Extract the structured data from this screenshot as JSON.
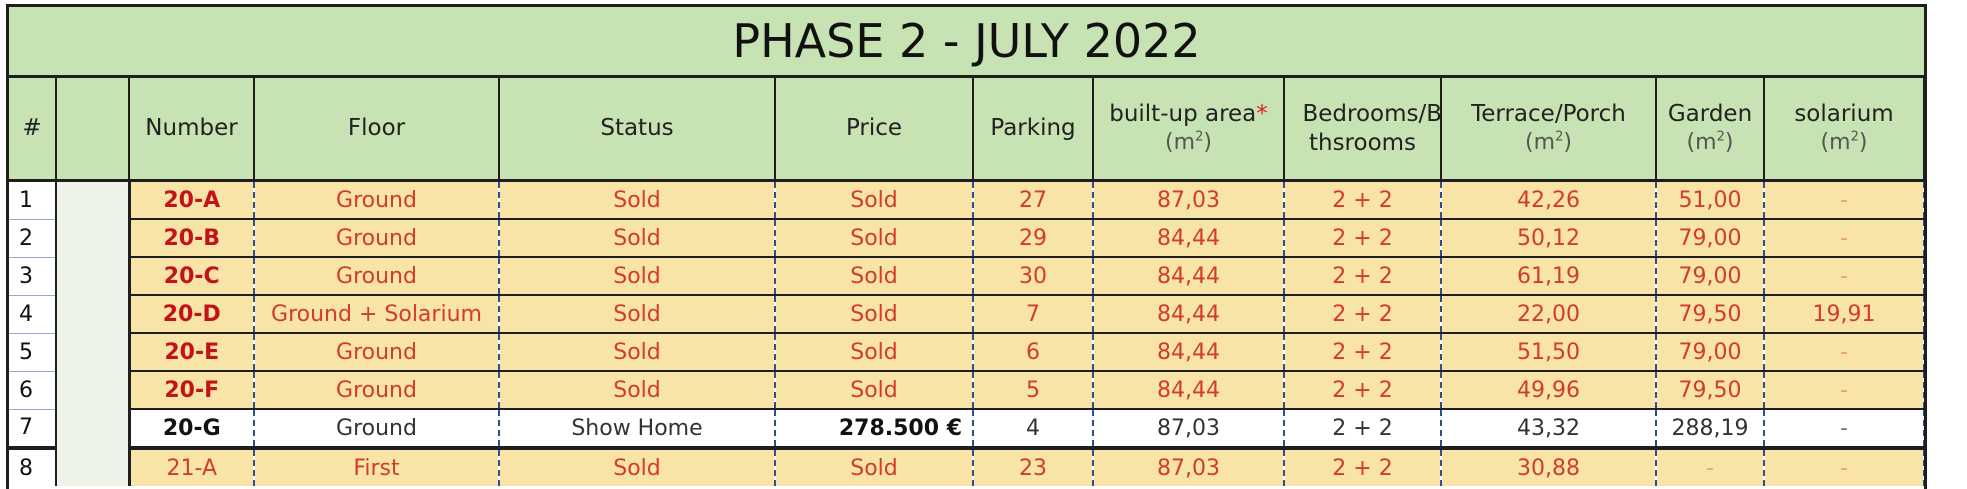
{
  "title": "PHASE 2 - JULY 2022",
  "columns": {
    "hash": "#",
    "number": "Number",
    "floor": "Floor",
    "status": "Status",
    "price": "Price",
    "parking": "Parking",
    "area": "built-up area",
    "area_star": "*",
    "bedrooms": "Bedrooms/Ba thsrooms",
    "terrace": "Terrace/Porch",
    "garden": "Garden",
    "solarium": "solarium",
    "unit_m": "(m",
    "unit_sup": "2",
    "unit_close": ")"
  },
  "rows": [
    {
      "idx": "1",
      "number": "20-A",
      "floor": "Ground",
      "status": "Sold",
      "price": "Sold",
      "parking": "27",
      "area": "87,03",
      "bedrooms": "2 + 2",
      "terrace": "42,26",
      "garden": "51,00",
      "solarium": "-"
    },
    {
      "idx": "2",
      "number": "20-B",
      "floor": "Ground",
      "status": "Sold",
      "price": "Sold",
      "parking": "29",
      "area": "84,44",
      "bedrooms": "2 + 2",
      "terrace": "50,12",
      "garden": "79,00",
      "solarium": "-"
    },
    {
      "idx": "3",
      "number": "20-C",
      "floor": "Ground",
      "status": "Sold",
      "price": "Sold",
      "parking": "30",
      "area": "84,44",
      "bedrooms": "2 + 2",
      "terrace": "61,19",
      "garden": "79,00",
      "solarium": "-"
    },
    {
      "idx": "4",
      "number": "20-D",
      "floor": "Ground + Solarium",
      "status": "Sold",
      "price": "Sold",
      "parking": "7",
      "area": "84,44",
      "bedrooms": "2 + 2",
      "terrace": "22,00",
      "garden": "79,50",
      "solarium": "19,91"
    },
    {
      "idx": "5",
      "number": "20-E",
      "floor": "Ground",
      "status": "Sold",
      "price": "Sold",
      "parking": "6",
      "area": "84,44",
      "bedrooms": "2 + 2",
      "terrace": "51,50",
      "garden": "79,00",
      "solarium": "-"
    },
    {
      "idx": "6",
      "number": "20-F",
      "floor": "Ground",
      "status": "Sold",
      "price": "Sold",
      "parking": "5",
      "area": "84,44",
      "bedrooms": "2 + 2",
      "terrace": "49,96",
      "garden": "79,50",
      "solarium": "-"
    },
    {
      "idx": "7",
      "number": "20-G",
      "floor": "Ground",
      "status": "Show Home",
      "price": "278.500 €",
      "parking": "4",
      "area": "87,03",
      "bedrooms": "2 + 2",
      "terrace": "43,32",
      "garden": "288,19",
      "solarium": "-"
    },
    {
      "idx": "8",
      "number": "21-A",
      "floor": "First",
      "status": "Sold",
      "price": "Sold",
      "parking": "23",
      "area": "87,03",
      "bedrooms": "2 + 2",
      "terrace": "30,88",
      "garden": "-",
      "solarium": "-"
    }
  ]
}
